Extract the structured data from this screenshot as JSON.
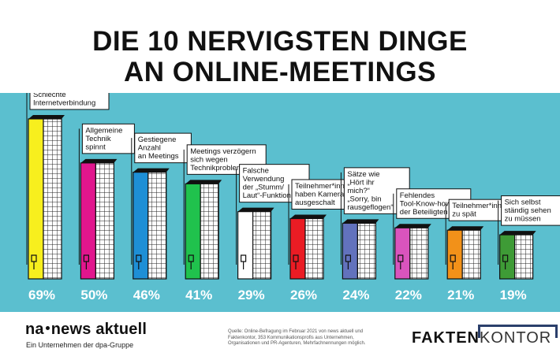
{
  "title": [
    "DIE 10 NERVIGSTEN DINGE",
    "AN ONLINE-MEETINGS"
  ],
  "colors": {
    "background_panel": "#5bbfcf",
    "bars": [
      "#f7ef1e",
      "#e1168d",
      "#1e8fd6",
      "#20c24d",
      "#ffffff",
      "#ea1c24",
      "#6272bd",
      "#d954bd",
      "#f29119",
      "#3e9b36"
    ],
    "percent_text": "#ffffff"
  },
  "chart_data": {
    "type": "bar",
    "title": "DIE 10 NERVIGSTEN DINGE AN ONLINE-MEETINGS",
    "xlabel": "",
    "ylabel": "",
    "ylim": [
      0,
      70
    ],
    "categories": [
      [
        "Schlechte",
        "Internetverbindung"
      ],
      [
        "Allgemeine",
        "Technik",
        "spinnt"
      ],
      [
        "Gestiegene",
        "Anzahl",
        "an Meetings"
      ],
      [
        "Meetings verzögern",
        "sich wegen",
        "Technikproblemen"
      ],
      [
        "Falsche",
        "Verwendung",
        "der „Stumm/",
        "Laut“-Funktion"
      ],
      [
        "Teilnehmer*innen",
        "haben Kamera",
        "ausgeschalt"
      ],
      [
        "Sätze wie",
        "„Hört ihr",
        "mich?“",
        "„Sorry, bin",
        "rausgeflogen“"
      ],
      [
        "Fehlendes",
        "Tool-Know-how",
        "der Beteiligten"
      ],
      [
        "Teilnehmer*innen",
        "zu spät"
      ],
      [
        "Sich selbst",
        "ständig sehen",
        "zu müssen"
      ]
    ],
    "values": [
      69,
      50,
      46,
      41,
      29,
      26,
      24,
      22,
      21,
      19
    ],
    "value_labels": [
      "69%",
      "50%",
      "46%",
      "41%",
      "29%",
      "26%",
      "24%",
      "22%",
      "21%",
      "19%"
    ]
  },
  "footer": {
    "logo_left": [
      "na",
      "news aktuell"
    ],
    "logo_left_sub": "Ein Unternehmen der dpa-Gruppe",
    "source": "Quelle: Online-Befragung im Februar 2021 von news aktuell und Faktenkontor, 353 Kommunikationsprofis aus Unternehmen, Organisationen und PR-Agenturen, Mehrfachnennungen möglich.",
    "logo_right": [
      "FAKTEN",
      "KONTOR"
    ]
  }
}
